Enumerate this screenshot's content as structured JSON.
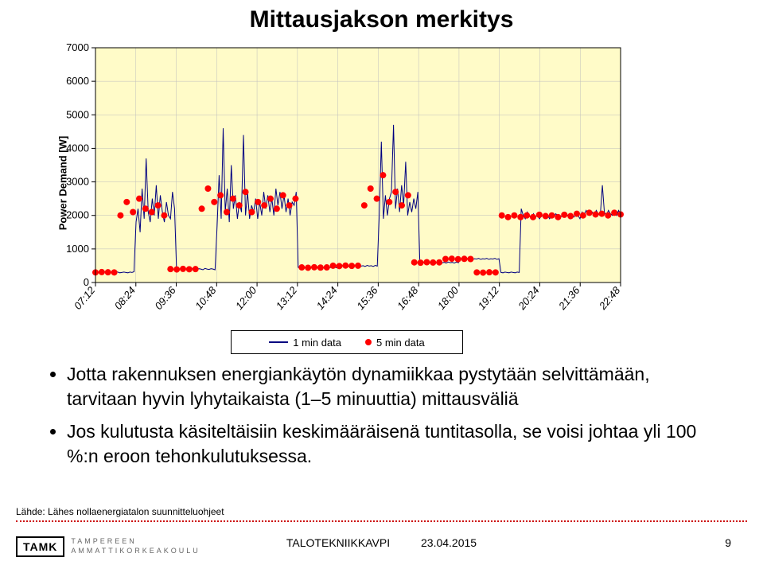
{
  "title": "Mittausjakson merkitys",
  "chart": {
    "type": "line+scatter",
    "background_color": "#fffbc8",
    "grid_color": "#bdbdbd",
    "axis_color": "#000000",
    "axis_fontsize": 13,
    "ylabel": "Power Demand [W]",
    "ylim": [
      0,
      7000
    ],
    "yticks": [
      0,
      1000,
      2000,
      3000,
      4000,
      5000,
      6000,
      7000
    ],
    "xticks": [
      "07:12",
      "08:24",
      "09:36",
      "10:48",
      "12:00",
      "13:12",
      "14:24",
      "15:36",
      "16:48",
      "18:00",
      "19:12",
      "20:24",
      "21:36",
      "22:48"
    ],
    "series_line": {
      "label": "1 min data",
      "color": "#000080",
      "width": 1,
      "y": [
        300,
        310,
        290,
        300,
        320,
        310,
        300,
        290,
        310,
        300,
        320,
        310,
        290,
        300,
        310,
        300,
        290,
        310,
        300,
        320,
        1800,
        2200,
        1500,
        2800,
        1900,
        3700,
        2100,
        1800,
        2500,
        2000,
        2900,
        1900,
        2600,
        2100,
        1800,
        2400,
        2000,
        1900,
        2700,
        2200,
        400,
        380,
        420,
        400,
        390,
        410,
        400,
        380,
        420,
        400,
        390,
        410,
        400,
        380,
        420,
        400,
        390,
        410,
        400,
        380,
        1700,
        3200,
        1900,
        4600,
        2100,
        2800,
        1800,
        3500,
        2200,
        2600,
        1900,
        2400,
        2100,
        4400,
        2000,
        2700,
        1900,
        2300,
        2100,
        2500,
        1900,
        2400,
        2000,
        2700,
        2200,
        2600,
        2100,
        2500,
        2000,
        2800,
        2300,
        2700,
        2200,
        2600,
        2100,
        2500,
        2000,
        2400,
        2300,
        2700,
        450,
        430,
        460,
        440,
        450,
        430,
        460,
        440,
        450,
        430,
        460,
        440,
        450,
        430,
        460,
        440,
        450,
        430,
        460,
        440,
        500,
        480,
        510,
        490,
        500,
        480,
        510,
        490,
        500,
        480,
        510,
        490,
        500,
        480,
        510,
        490,
        500,
        480,
        510,
        490,
        2100,
        4200,
        1900,
        2600,
        2000,
        2500,
        2700,
        4700,
        2200,
        2800,
        2100,
        2900,
        2300,
        3600,
        2000,
        2400,
        2100,
        2500,
        2200,
        2700,
        600,
        580,
        610,
        590,
        600,
        580,
        610,
        590,
        600,
        580,
        610,
        590,
        600,
        580,
        610,
        590,
        600,
        580,
        610,
        590,
        700,
        720,
        690,
        710,
        700,
        720,
        690,
        710,
        700,
        720,
        690,
        710,
        700,
        720,
        690,
        710,
        700,
        720,
        690,
        710,
        300,
        290,
        310,
        300,
        290,
        310,
        300,
        290,
        310,
        300,
        2200,
        2000,
        1900,
        2100,
        2000,
        1900,
        2050,
        1950,
        2000,
        1900,
        2000,
        1950,
        2050,
        2000,
        1900,
        2000,
        1950,
        2050,
        2000,
        1900,
        2000,
        1950,
        2050,
        2000,
        1900,
        2000,
        1950,
        2050,
        2000,
        1900,
        2100,
        2000,
        2150,
        2050,
        2000,
        2100,
        2000,
        2150,
        2050,
        2000,
        2900,
        2100,
        2000,
        2150,
        2050,
        2000,
        2100,
        2000,
        2150,
        2050
      ]
    },
    "series_dots": {
      "label": "5 min data",
      "color": "#ff0000",
      "marker_size": 4,
      "y": [
        300,
        310,
        305,
        300,
        2000,
        2400,
        2100,
        2500,
        2200,
        2100,
        2300,
        2000,
        400,
        390,
        405,
        395,
        400,
        2200,
        2800,
        2400,
        2600,
        2100,
        2500,
        2300,
        2700,
        2100,
        2400,
        2300,
        2500,
        2200,
        2600,
        2300,
        2500,
        450,
        440,
        455,
        445,
        450,
        500,
        490,
        505,
        495,
        500,
        2300,
        2800,
        2500,
        3200,
        2400,
        2700,
        2300,
        2600,
        600,
        590,
        605,
        595,
        600,
        700,
        710,
        695,
        705,
        700,
        300,
        295,
        305,
        300,
        2000,
        1950,
        2000,
        1950,
        2000,
        1950,
        2020,
        1980,
        2000,
        1950,
        2020,
        1980,
        2050,
        2000,
        2080,
        2030,
        2050,
        2000,
        2080,
        2030
      ]
    }
  },
  "legend": {
    "line_label": "1 min data",
    "dot_label": "5 min data"
  },
  "bullets": [
    "Jotta rakennuksen energiankäytön dynamiikkaa pystytään selvittämään, tarvitaan hyvin lyhytaikaista (1–5 minuuttia) mittausväliä",
    "Jos kulutusta käsiteltäisiin keskimääräisenä tuntitasolla, se voisi johtaa yli 100 %:n eroon tehonkulutuksessa."
  ],
  "source": "Lähde: Lähes nollaenergiatalon suunnitteluohjeet",
  "footer": {
    "logo_mark": "TAMK",
    "logo_text1": "TAMPEREEN",
    "logo_text2": "AMMATTIKORKEAKOULU",
    "center": "TALOTEKNIIKKAVPI",
    "date": "23.04.2015",
    "page": "9"
  }
}
